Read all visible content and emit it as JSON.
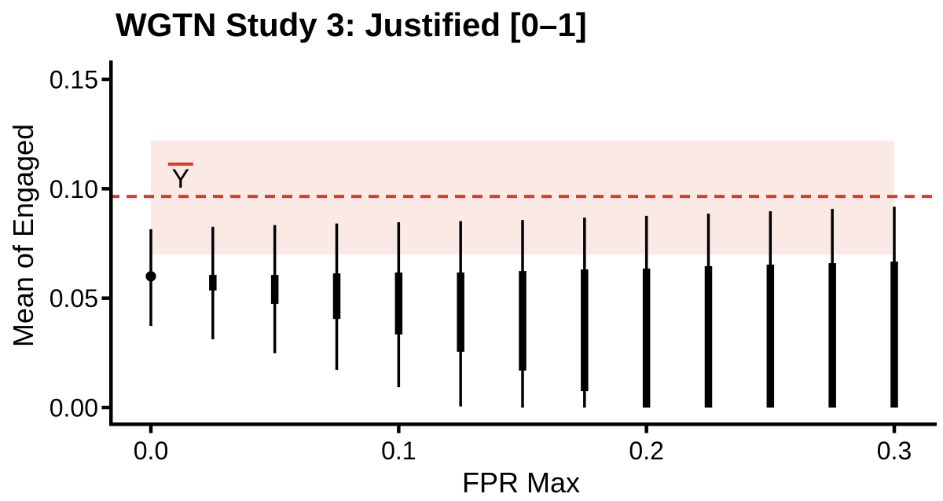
{
  "title": "WGTN Study 3: Justified [0–1]",
  "colors": {
    "accent_red": "#E2372B",
    "band_pink": "#FBE9E6",
    "bar_black": "#000000",
    "background": "#FFFFFF"
  },
  "chart_data": {
    "type": "scatter",
    "subtype": "pointrange-interval",
    "title": "WGTN Study 3: Justified [0–1]",
    "xlabel": "FPR Max",
    "ylabel": "Mean of Engaged",
    "xlim": [
      -0.016,
      0.316
    ],
    "ylim": [
      -0.008,
      0.159
    ],
    "grid": false,
    "legend": false,
    "x_ticks": [
      0.0,
      0.1,
      0.2,
      0.3
    ],
    "x_tick_labels": [
      "0.0",
      "0.1",
      "0.2",
      "0.3"
    ],
    "y_ticks": [
      0.0,
      0.05,
      0.1,
      0.15
    ],
    "y_tick_labels": [
      "0.00",
      "0.05",
      "0.10",
      "0.15"
    ],
    "reference_line": {
      "y": 0.0965,
      "style": "dashed",
      "color": "#E2372B",
      "label": "Ȳ",
      "label_text": "Y",
      "label_overline": true,
      "label_x": 0.012,
      "label_y": 0.106
    },
    "band": {
      "x0": 0.0,
      "x1": 0.3,
      "y0": 0.07,
      "y1": 0.122,
      "fill": "#FBE9E6"
    },
    "series": [
      {
        "name": "mean-of-engaged-intervals",
        "color": "#000000",
        "points": [
          {
            "x": 0.0,
            "outer_low": 0.0373,
            "outer_high": 0.0815,
            "inner_low": null,
            "inner_high": null,
            "point": 0.06
          },
          {
            "x": 0.025,
            "outer_low": 0.0312,
            "outer_high": 0.0826,
            "inner_low": 0.0535,
            "inner_high": 0.0606,
            "point": null
          },
          {
            "x": 0.05,
            "outer_low": 0.0248,
            "outer_high": 0.0834,
            "inner_low": 0.0474,
            "inner_high": 0.0606,
            "point": null
          },
          {
            "x": 0.075,
            "outer_low": 0.0172,
            "outer_high": 0.0841,
            "inner_low": 0.0405,
            "inner_high": 0.0613,
            "point": null
          },
          {
            "x": 0.1,
            "outer_low": 0.0093,
            "outer_high": 0.0847,
            "inner_low": 0.0334,
            "inner_high": 0.0617,
            "point": null
          },
          {
            "x": 0.125,
            "outer_low": 0.0005,
            "outer_high": 0.0852,
            "inner_low": 0.0255,
            "inner_high": 0.0617,
            "point": null
          },
          {
            "x": 0.15,
            "outer_low": 0.0,
            "outer_high": 0.0857,
            "inner_low": 0.0169,
            "inner_high": 0.0624,
            "point": null
          },
          {
            "x": 0.175,
            "outer_low": 0.0,
            "outer_high": 0.0868,
            "inner_low": 0.0075,
            "inner_high": 0.0631,
            "point": null
          },
          {
            "x": 0.2,
            "outer_low": 0.0,
            "outer_high": 0.0876,
            "inner_low": 0.0,
            "inner_high": 0.0635,
            "point": null
          },
          {
            "x": 0.225,
            "outer_low": 0.0,
            "outer_high": 0.0886,
            "inner_low": 0.0,
            "inner_high": 0.0646,
            "point": null
          },
          {
            "x": 0.25,
            "outer_low": 0.0,
            "outer_high": 0.0897,
            "inner_low": 0.0,
            "inner_high": 0.0653,
            "point": null
          },
          {
            "x": 0.275,
            "outer_low": 0.0,
            "outer_high": 0.0908,
            "inner_low": 0.0,
            "inner_high": 0.066,
            "point": null
          },
          {
            "x": 0.3,
            "outer_low": 0.0,
            "outer_high": 0.0918,
            "inner_low": 0.0,
            "inner_high": 0.0667,
            "point": null
          }
        ]
      }
    ]
  }
}
